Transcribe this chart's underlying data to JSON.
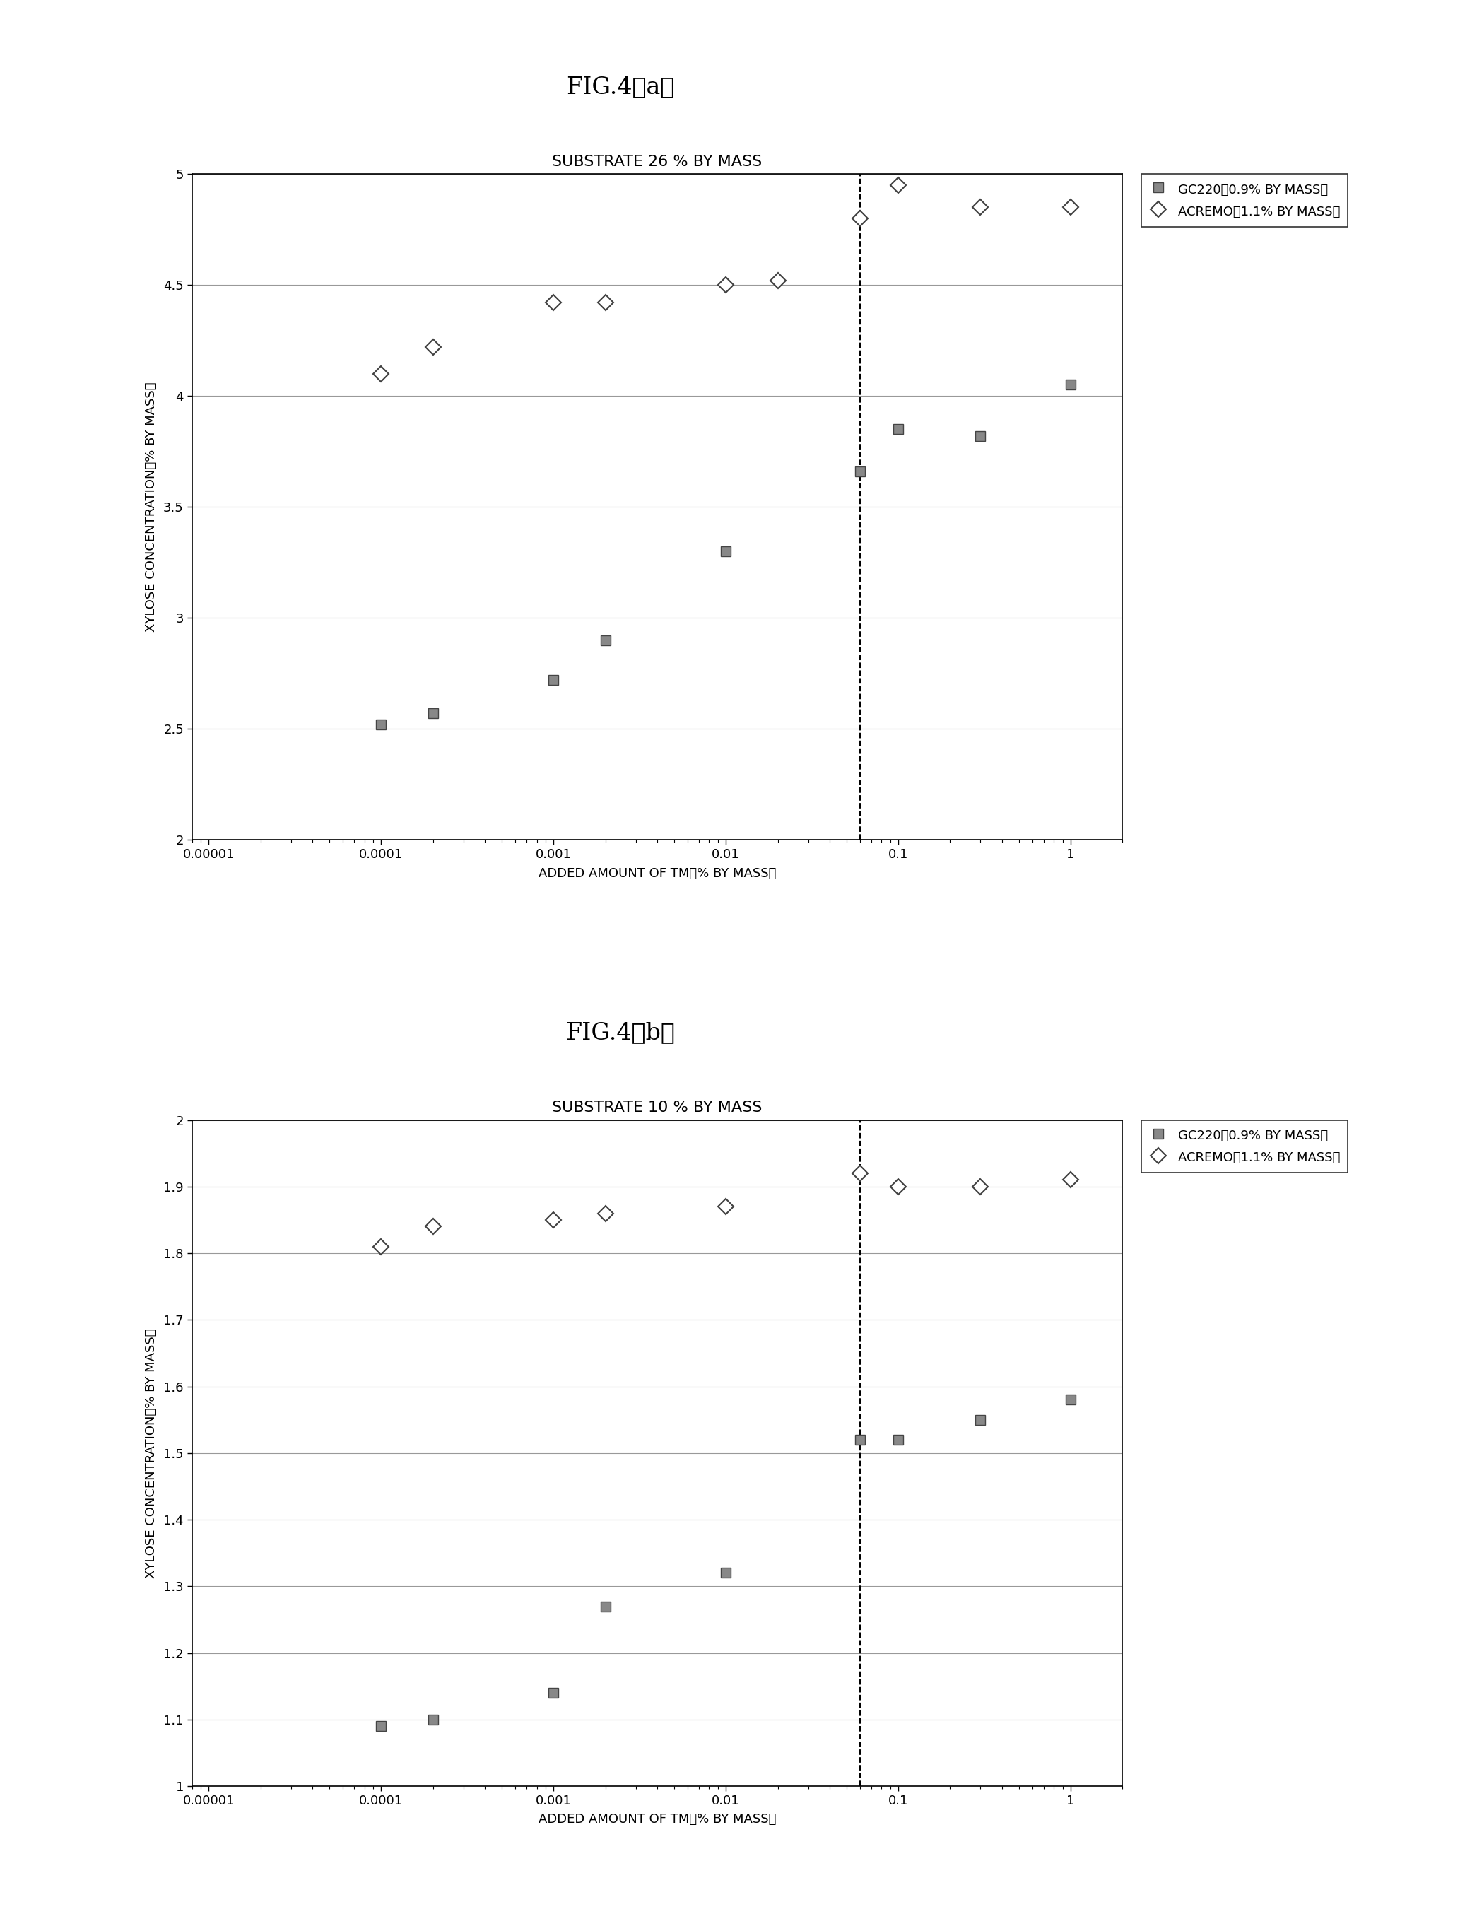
{
  "fig_a_title": "FIG.4（a）",
  "fig_b_title": "FIG.4（b）",
  "chart_a_title": "SUBSTRATE 26 % BY MASS",
  "chart_b_title": "SUBSTRATE 10 % BY MASS",
  "xlabel": "ADDED AMOUNT OF TM（% BY MASS）",
  "ylabel": "XYLOSE CONCENTRATION（% BY MASS）",
  "legend_1": "ACREMO（1.1% BY MASS）",
  "legend_2": "GC220（0.9% BY MASS）",
  "chart_a": {
    "acremo_x": [
      0.0001,
      0.0002,
      0.001,
      0.002,
      0.01,
      0.02,
      0.06,
      0.1,
      0.3,
      1.0
    ],
    "acremo_y": [
      4.1,
      4.22,
      4.42,
      4.42,
      4.5,
      4.52,
      4.8,
      4.95,
      4.85,
      4.85
    ],
    "gc220_x": [
      0.0001,
      0.0002,
      0.001,
      0.002,
      0.01,
      0.06,
      0.1,
      0.3,
      1.0
    ],
    "gc220_y": [
      2.52,
      2.57,
      2.72,
      2.9,
      3.3,
      3.66,
      3.85,
      3.82,
      4.05
    ],
    "ylim": [
      2.0,
      5.0
    ],
    "yticks": [
      2.0,
      2.5,
      3.0,
      3.5,
      4.0,
      4.5,
      5.0
    ],
    "dashed_x": 0.06
  },
  "chart_b": {
    "acremo_x": [
      0.0001,
      0.0002,
      0.001,
      0.002,
      0.01,
      0.06,
      0.1,
      0.3,
      1.0
    ],
    "acremo_y": [
      1.81,
      1.84,
      1.85,
      1.86,
      1.87,
      1.92,
      1.9,
      1.9,
      1.91
    ],
    "gc220_x": [
      0.0001,
      0.0002,
      0.001,
      0.002,
      0.01,
      0.06,
      0.1,
      0.3,
      1.0
    ],
    "gc220_y": [
      1.09,
      1.1,
      1.14,
      1.27,
      1.32,
      1.52,
      1.52,
      1.55,
      1.58
    ],
    "ylim": [
      1.0,
      2.0
    ],
    "yticks": [
      1.0,
      1.1,
      1.2,
      1.3,
      1.4,
      1.5,
      1.6,
      1.7,
      1.8,
      1.9,
      2.0
    ],
    "dashed_x": 0.06
  },
  "xlim_log": [
    -5,
    0
  ],
  "xticks": [
    1e-05,
    0.0001,
    0.001,
    0.01,
    0.1,
    1.0
  ],
  "xticklabels": [
    "0.00001",
    "0.0001",
    "0.001",
    "0.01",
    "0.1",
    "1"
  ],
  "acremo_color": "#404040",
  "gc220_color": "#888888",
  "background_color": "#ffffff",
  "grid_color": "#999999",
  "fontsize_fig_title": 24,
  "fontsize_chart_title": 16,
  "fontsize_axis_label": 13,
  "fontsize_tick": 13,
  "fontsize_legend": 13
}
